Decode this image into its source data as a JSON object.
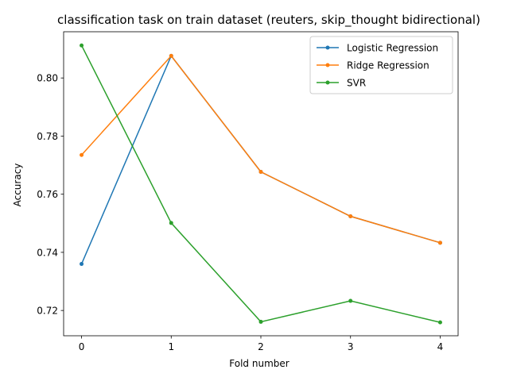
{
  "chart_data": {
    "type": "line",
    "title": "classification task on train dataset (reuters, skip_thought bidirectional)",
    "xlabel": "Fold number",
    "ylabel": "Accuracy",
    "x": [
      0,
      1,
      2,
      3,
      4
    ],
    "xlim": [
      -0.2,
      4.2
    ],
    "ylim": [
      0.7113,
      0.8159
    ],
    "xticks": [
      0,
      1,
      2,
      3,
      4
    ],
    "yticks": [
      0.72,
      0.74,
      0.76,
      0.78,
      0.8
    ],
    "ytick_labels": [
      "0.72",
      "0.74",
      "0.76",
      "0.78",
      "0.80"
    ],
    "legend_position": "top-right",
    "grid": false,
    "series": [
      {
        "name": "Logistic Regression",
        "color": "#1f77b4",
        "values": [
          0.736,
          0.8076,
          0.7677,
          0.7524,
          0.7433
        ]
      },
      {
        "name": "Ridge Regression",
        "color": "#ff7f0e",
        "values": [
          0.7735,
          0.8076,
          0.7677,
          0.7524,
          0.7433
        ]
      },
      {
        "name": "SVR",
        "color": "#2ca02c",
        "values": [
          0.8112,
          0.7501,
          0.7161,
          0.7233,
          0.7159
        ]
      }
    ]
  }
}
